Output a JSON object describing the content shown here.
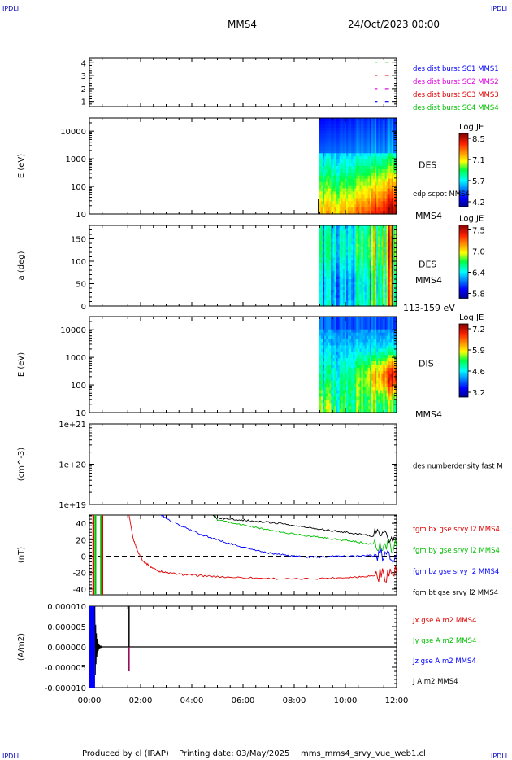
{
  "header": {
    "corner_tl": "IPDLI",
    "corner_tr": "IPDLI",
    "corner_bl": "IPDLI",
    "corner_br": "IPDLI",
    "title": "MMS4",
    "date": "24/Oct/2023 00:00"
  },
  "footer": {
    "produced_by": "Produced by cl (IRAP)",
    "printing_date": "Printing date: 03/May/2025",
    "script_name": "mms_mms4_srvy_vue_web1.cl"
  },
  "colors": {
    "blue": "#0000ff",
    "magenta": "#e000e0",
    "red": "#e00000",
    "green": "#00c000",
    "black": "#000000"
  },
  "chart_data": [
    {
      "type": "line",
      "id": "burst",
      "ylim": [
        0.6,
        4.4
      ],
      "ytick_labels": [
        "1",
        "2",
        "3",
        "4"
      ],
      "labels": [
        {
          "text": "des dist burst SC1 MMS1",
          "color": "#0000ff"
        },
        {
          "text": "des dist burst SC2 MMS2",
          "color": "#e000e0"
        },
        {
          "text": "des dist burst SC3 MMS3",
          "color": "#e00000"
        },
        {
          "text": "des dist burst SC4 MMS4",
          "color": "#00c000"
        }
      ],
      "series": [
        {
          "level": 4,
          "color": "#00c000",
          "x": [
            11.15,
            11.25,
            11.55,
            11.7
          ]
        },
        {
          "level": 3,
          "color": "#e00000",
          "x": [
            11.15,
            11.25,
            11.55,
            11.7
          ]
        },
        {
          "level": 2,
          "color": "#e000e0",
          "x": [
            11.15,
            11.25,
            11.55,
            11.7
          ]
        },
        {
          "level": 1,
          "color": "#0000ff",
          "x": [
            11.15,
            11.25,
            11.55,
            11.7
          ]
        }
      ]
    },
    {
      "type": "heatmap",
      "id": "des_energy",
      "ylabel": "E (eV)",
      "yscale": "log",
      "ylim": [
        10,
        30000
      ],
      "ytick_labels": [
        "10",
        "100",
        "1000",
        "10000"
      ],
      "data_start_hour": 8.98,
      "instrument": "DES",
      "overlay_label": "edp scpot MMS4",
      "spacecraft": "MMS4",
      "colorbar": {
        "title": "Log JE",
        "labels": [
          "8.5",
          "7.1",
          "5.7",
          "4.2"
        ]
      }
    },
    {
      "type": "heatmap",
      "id": "des_pitch",
      "ylabel": "a (deg)",
      "ylim": [
        0,
        180
      ],
      "ytick_labels": [
        "0",
        "50",
        "100",
        "150"
      ],
      "data_start_hour": 8.98,
      "instrument": "DES",
      "spacecraft": "MMS4",
      "energy_range": "113-159 eV",
      "colorbar": {
        "title": "Log JE",
        "labels": [
          "7.5",
          "7.0",
          "6.4",
          "5.8"
        ]
      }
    },
    {
      "type": "heatmap",
      "id": "dis_energy",
      "ylabel": "E (eV)",
      "yscale": "log",
      "ylim": [
        10,
        30000
      ],
      "ytick_labels": [
        "10",
        "100",
        "1000",
        "10000"
      ],
      "data_start_hour": 8.98,
      "instrument": "DIS",
      "spacecraft": "MMS4",
      "colorbar": {
        "title": "Log JE",
        "labels": [
          "7.2",
          "5.9",
          "4.6",
          "3.2"
        ]
      }
    },
    {
      "type": "line",
      "id": "density",
      "ylabel": "(cm^-3)",
      "yscale": "log",
      "ylim": [
        1e+19,
        1e+21
      ],
      "ytick_labels": [
        "1e+19",
        "1e+20",
        "1e+21"
      ],
      "series": [
        {
          "name": "des numberdensity fast M",
          "color": "#000000",
          "x": [],
          "y": []
        }
      ]
    },
    {
      "type": "line",
      "id": "fgm",
      "ylabel": "(nT)",
      "ylim": [
        -47,
        50
      ],
      "ytick_labels": [
        "-40",
        "-20",
        "0",
        "20",
        "40"
      ],
      "series": [
        {
          "name": "fgm bx gse srvy l2 MMS4",
          "color": "#e00000",
          "x": [
            1.55,
            1.7,
            1.9,
            2.1,
            2.4,
            2.7,
            3.0,
            3.5,
            4.0,
            4.5,
            5.0,
            6.0,
            7.0,
            8.0,
            9.0,
            10.0,
            10.5,
            11.0,
            11.5,
            12.0
          ],
          "y": [
            50,
            22,
            5,
            -6,
            -13,
            -18,
            -20,
            -22,
            -23,
            -24,
            -25,
            -26,
            -27,
            -28,
            -27,
            -26,
            -25,
            -24,
            -22,
            -20
          ]
        },
        {
          "name": "fgm by gse srvy l2 MMS4",
          "color": "#00c000",
          "x": [
            4.9,
            5.0,
            5.5,
            6.0,
            6.5,
            7.0,
            7.5,
            8.0,
            8.5,
            9.0,
            9.5,
            10.0,
            10.5,
            11.0,
            11.5,
            12.0
          ],
          "y": [
            50,
            44,
            41,
            38,
            35,
            32,
            29,
            27,
            25,
            23,
            21,
            19,
            17,
            15,
            13,
            12
          ]
        },
        {
          "name": "fgm bz gse srvy l2 MMS4",
          "color": "#0000ff",
          "x": [
            2.8,
            3.0,
            3.5,
            4.0,
            4.5,
            5.0,
            5.5,
            6.0,
            6.5,
            7.0,
            7.5,
            8.0,
            8.5,
            9.0,
            9.5,
            10.0,
            10.5,
            11.0,
            11.5,
            12.0
          ],
          "y": [
            50,
            46,
            38,
            31,
            25,
            20,
            15,
            11,
            7,
            4,
            2,
            0,
            -1,
            -1,
            0,
            0,
            0,
            1,
            0,
            2
          ]
        },
        {
          "name": "fgm bt gse srvy l2 MMS4",
          "color": "#000000",
          "x": [
            4.8,
            5.0,
            5.5,
            6.0,
            6.5,
            7.0,
            7.5,
            8.0,
            8.5,
            9.0,
            9.5,
            10.0,
            10.5,
            11.0,
            11.5,
            12.0
          ],
          "y": [
            50,
            46,
            45,
            44,
            42,
            41,
            40,
            37,
            35,
            33,
            31,
            29,
            27,
            25,
            22,
            20
          ]
        }
      ]
    },
    {
      "type": "line",
      "id": "current",
      "ylabel": "(A/m2)",
      "ylim": [
        -1e-05,
        1e-05
      ],
      "ytick_labels": [
        "-0.000010",
        "-0.000005",
        "0.000000",
        "0.000005",
        "0.000010"
      ],
      "series": [
        {
          "name": "Jx gse A m2 MMS4",
          "color": "#e00000",
          "x": [],
          "y": []
        },
        {
          "name": "Jy gse A m2 MMS4",
          "color": "#00c000",
          "x": [],
          "y": []
        },
        {
          "name": "Jz gse A m2 MMS4",
          "color": "#0000ff",
          "x": [],
          "y": []
        },
        {
          "name": "J A m2 MMS4",
          "color": "#000000",
          "x": [],
          "y": []
        }
      ]
    }
  ],
  "xaxis": {
    "xlim": [
      0,
      12
    ],
    "tick_values": [
      0,
      2,
      4,
      6,
      8,
      10,
      12
    ],
    "tick_labels": [
      "00:00",
      "02:00",
      "04:00",
      "06:00",
      "08:00",
      "10:00",
      "12:00"
    ]
  }
}
